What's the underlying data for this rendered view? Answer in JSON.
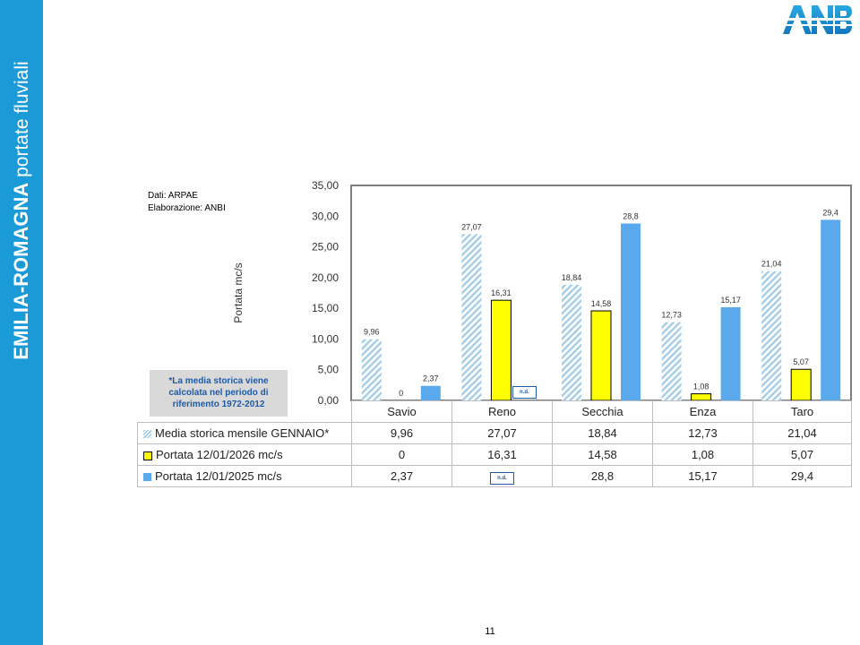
{
  "sidebar": {
    "title_bold": "EMILIA-ROMAGNA",
    "title_rest": " portate fluviali"
  },
  "logo": {
    "text": "ANBI",
    "icon": "anbi-logo-icon"
  },
  "page_number": "11",
  "source": {
    "line1": "Dati: ARPAE",
    "line2": "Elaborazione: ANBI"
  },
  "note": {
    "line1": "*La media storica viene",
    "line2": "calcolata nel periodo di",
    "line3": "riferimento 1972-2012"
  },
  "nd_label": "n.d.",
  "colors": {
    "sidebar": "#1a9bd7",
    "hist_stripe": "#9ecae7",
    "bar_2026": "#ffff00",
    "bar_2025": "#5aa9ec",
    "plot_border": "#7f7f7f"
  },
  "chart_data": {
    "type": "bar",
    "categories": [
      "Savio",
      "Reno",
      "Secchia",
      "Enza",
      "Taro"
    ],
    "ylabel": "Portata mc/s",
    "ylim": [
      0,
      35
    ],
    "yticks": [
      "0,00",
      "5,00",
      "10,00",
      "15,00",
      "20,00",
      "25,00",
      "30,00",
      "35,00"
    ],
    "ytick_values": [
      0,
      5,
      10,
      15,
      20,
      25,
      30,
      35
    ],
    "grid": false,
    "legend": "data table below chart",
    "series": [
      {
        "name": "Media storica mensile GENNAIO*",
        "values": [
          9.96,
          27.07,
          18.84,
          12.73,
          21.04
        ],
        "labels": [
          "9,96",
          "27,07",
          "18,84",
          "12,73",
          "21,04"
        ],
        "style": "hatched"
      },
      {
        "name": "Portata 12/01/2026 mc/s",
        "values": [
          0,
          16.31,
          14.58,
          1.08,
          5.07
        ],
        "labels": [
          "0",
          "16,31",
          "14,58",
          "1,08",
          "5,07"
        ],
        "style": "solid-yellow"
      },
      {
        "name": "Portata 12/01/2025 mc/s",
        "values": [
          2.37,
          null,
          28.8,
          15.17,
          29.4
        ],
        "labels": [
          "2,37",
          "n.d.",
          "28,8",
          "15,17",
          "29,4"
        ],
        "style": "solid-blue"
      }
    ]
  }
}
